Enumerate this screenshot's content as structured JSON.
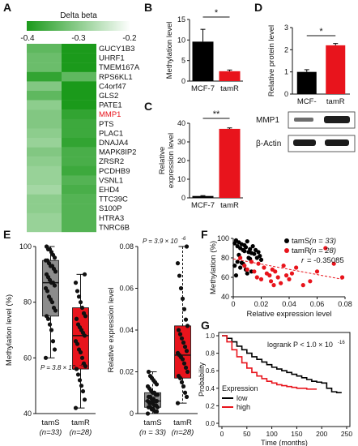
{
  "chart_data": [
    {
      "panel": "A",
      "type": "heatmap",
      "legend_title": "Delta beta",
      "legend_ticks": [
        "-0.4",
        "-0.3",
        "-0.2"
      ],
      "legend_range": [
        -0.4,
        -0.2
      ],
      "genes": [
        "GUCY1B3",
        "UHRF1",
        "TMEM167A",
        "RPS6KL1",
        "C4orf47",
        "GLS2",
        "PATE1",
        "MMP1",
        "PTS",
        "PLAC1",
        "DNAJA4",
        "MAPK8IP2",
        "ZRSR2",
        "PCDHB9",
        "VSNL1",
        "EHD4",
        "TTC39C",
        "S100P",
        "HTRA3",
        "TNRC6B"
      ],
      "highlight_gene": "MMP1",
      "highlight_color": "#e8141c",
      "columns": [
        [
          -0.34,
          -0.33,
          -0.33,
          -0.38,
          -0.31,
          -0.34,
          -0.3,
          -0.31,
          -0.31,
          -0.3,
          -0.29,
          -0.31,
          -0.3,
          -0.29,
          -0.29,
          -0.28,
          -0.3,
          -0.3,
          -0.29,
          -0.29
        ],
        [
          -0.4,
          -0.4,
          -0.4,
          -0.34,
          -0.4,
          -0.4,
          -0.4,
          -0.38,
          -0.37,
          -0.37,
          -0.38,
          -0.36,
          -0.36,
          -0.37,
          -0.35,
          -0.36,
          -0.35,
          -0.35,
          -0.35,
          -0.35
        ]
      ]
    },
    {
      "panel": "B",
      "type": "bar",
      "ylabel": "Methylation level",
      "categories": [
        "MCF-7",
        "tamR"
      ],
      "values": [
        9.6,
        2.4
      ],
      "errors": [
        3.0,
        0.3
      ],
      "colors": [
        "#000000",
        "#e8141c"
      ],
      "ylim": [
        0,
        15
      ],
      "yticks": [
        "0",
        "5",
        "10",
        "15"
      ],
      "significance": "*"
    },
    {
      "panel": "C",
      "type": "bar",
      "ylabel": "Relative expression level",
      "categories": [
        "MCF-7",
        "tamR"
      ],
      "values": [
        1,
        37
      ],
      "errors": [
        0.2,
        0.5
      ],
      "colors": [
        "#000000",
        "#e8141c"
      ],
      "ylim": [
        0,
        40
      ],
      "yticks": [
        "0",
        "10",
        "20",
        "30",
        "40"
      ],
      "significance": "**"
    },
    {
      "panel": "D",
      "type": "bar",
      "ylabel": "Relative protein level",
      "categories": [
        "MCF-",
        "tamR"
      ],
      "values": [
        1.0,
        2.2
      ],
      "errors": [
        0.1,
        0.08
      ],
      "colors": [
        "#000000",
        "#e8141c"
      ],
      "ylim": [
        0,
        3
      ],
      "yticks": [
        "0",
        "1",
        "2",
        "3"
      ],
      "significance": "*",
      "blot_labels": [
        "MMP1",
        "β-Actin"
      ]
    },
    {
      "panel": "E",
      "type": "box",
      "ylabel": "Methylation level (%)",
      "groups": [
        "tamS",
        "tamR"
      ],
      "group_n": [
        "(n=33)",
        "(n=28)"
      ],
      "box_colors": [
        "#8c8c8c",
        "#e8141c"
      ],
      "stats": [
        {
          "min": 60,
          "q1": 75,
          "median": 87,
          "q3": 95,
          "max": 100
        },
        {
          "min": 42,
          "q1": 56,
          "median": 68,
          "q3": 78,
          "max": 90
        }
      ],
      "points": [
        [
          60,
          63,
          66,
          70,
          72,
          74,
          75,
          77,
          78,
          80,
          81,
          82,
          84,
          85,
          86,
          87,
          87,
          88,
          89,
          90,
          91,
          92,
          93,
          93,
          94,
          95,
          95,
          96,
          97,
          98,
          99,
          99,
          100
        ],
        [
          42,
          45,
          48,
          50,
          52,
          54,
          56,
          57,
          58,
          60,
          62,
          63,
          65,
          66,
          68,
          69,
          70,
          71,
          72,
          74,
          75,
          76,
          78,
          80,
          82,
          84,
          87,
          90
        ]
      ],
      "ylim": [
        40,
        100
      ],
      "yticks": [
        "40",
        "60",
        "80",
        "100"
      ],
      "pvalue": "P = 3.8 × 10",
      "pvalue_exp": "-6"
    },
    {
      "panel": "E2",
      "type": "box",
      "ylabel": "Relative expression level",
      "groups": [
        "tamS",
        "tamR"
      ],
      "group_n": [
        "(n = 33)",
        "(n=28)"
      ],
      "box_colors": [
        "#8c8c8c",
        "#e8141c"
      ],
      "stats": [
        {
          "min": 0.0,
          "q1": 0.003,
          "median": 0.006,
          "q3": 0.01,
          "max": 0.02
        },
        {
          "min": 0.005,
          "q1": 0.017,
          "median": 0.028,
          "q3": 0.042,
          "max": 0.08
        }
      ],
      "points": [
        [
          0.0,
          0.001,
          0.001,
          0.002,
          0.002,
          0.003,
          0.003,
          0.003,
          0.004,
          0.004,
          0.005,
          0.005,
          0.005,
          0.006,
          0.006,
          0.006,
          0.007,
          0.007,
          0.008,
          0.008,
          0.009,
          0.009,
          0.01,
          0.01,
          0.011,
          0.012,
          0.013,
          0.014,
          0.015,
          0.016,
          0.017,
          0.018,
          0.02
        ],
        [
          0.005,
          0.008,
          0.01,
          0.013,
          0.015,
          0.017,
          0.018,
          0.02,
          0.022,
          0.024,
          0.026,
          0.027,
          0.028,
          0.029,
          0.03,
          0.032,
          0.034,
          0.036,
          0.038,
          0.04,
          0.042,
          0.045,
          0.05,
          0.055,
          0.06,
          0.066,
          0.072,
          0.08
        ]
      ],
      "ylim": [
        0,
        0.08
      ],
      "yticks": [
        "0",
        "0.02",
        "0.04",
        "0.06",
        "0.08"
      ],
      "pvalue": "P = 3.9 × 10",
      "pvalue_exp": "-6"
    },
    {
      "panel": "F",
      "type": "scatter",
      "xlabel": "Relative expression level",
      "ylabel": "Methylation (%)",
      "xlim": [
        0,
        0.08
      ],
      "ylim": [
        40,
        100
      ],
      "xticks": [
        "0",
        "0.02",
        "0.04",
        "0.06",
        "0.08"
      ],
      "yticks": [
        "40",
        "60",
        "80",
        "100"
      ],
      "series": [
        {
          "name": "tamS",
          "n_label": "(n = 33)",
          "color": "#000000",
          "x": [
            0.001,
            0.002,
            0.003,
            0.004,
            0.005,
            0.006,
            0.007,
            0.008,
            0.009,
            0.01,
            0.011,
            0.012,
            0.013,
            0.014,
            0.015,
            0.016,
            0.017,
            0.018,
            0.019,
            0.02,
            0.001,
            0.003,
            0.005,
            0.007,
            0.009,
            0.011,
            0.013,
            0.002,
            0.004,
            0.006,
            0.008,
            0.01,
            0.012
          ],
          "y": [
            95,
            98,
            92,
            96,
            90,
            94,
            88,
            93,
            91,
            97,
            86,
            89,
            85,
            92,
            84,
            88,
            80,
            86,
            82,
            78,
            72,
            76,
            70,
            74,
            68,
            80,
            66,
            62,
            83,
            75,
            87,
            64,
            79
          ]
        },
        {
          "name": "tamR",
          "n_label": "(n = 28)",
          "color": "#e8141c",
          "x": [
            0.005,
            0.008,
            0.01,
            0.013,
            0.015,
            0.017,
            0.018,
            0.02,
            0.022,
            0.024,
            0.026,
            0.027,
            0.028,
            0.029,
            0.03,
            0.032,
            0.034,
            0.036,
            0.038,
            0.04,
            0.042,
            0.045,
            0.05,
            0.055,
            0.06,
            0.066,
            0.072,
            0.078
          ],
          "y": [
            80,
            72,
            68,
            76,
            66,
            60,
            74,
            58,
            70,
            64,
            62,
            56,
            68,
            52,
            66,
            60,
            54,
            72,
            62,
            58,
            64,
            70,
            52,
            56,
            66,
            90,
            74,
            60
          ]
        }
      ],
      "trendline": {
        "x": [
          0,
          0.078
        ],
        "y": [
          79,
          58
        ]
      },
      "r_label": "r",
      "r_value": "= -0.35085"
    },
    {
      "panel": "G",
      "type": "line",
      "xlabel": "Time (months)",
      "ylabel": "Probability",
      "xlim": [
        0,
        250
      ],
      "ylim": [
        0,
        1.0
      ],
      "xticks": [
        "0",
        "50",
        "100",
        "150",
        "200",
        "250"
      ],
      "yticks": [
        "0.0",
        "0.2",
        "0.4",
        "0.6",
        "0.8",
        "1.0"
      ],
      "legend_title": "Expression",
      "annotation": "logrank P < 1.0 × 10",
      "annotation_exp": "-16",
      "series": [
        {
          "name": "low",
          "color": "#000000",
          "x": [
            0,
            10,
            20,
            30,
            40,
            50,
            60,
            70,
            80,
            90,
            100,
            110,
            120,
            130,
            140,
            150,
            160,
            170,
            180,
            190,
            200,
            210,
            220,
            230,
            240
          ],
          "y": [
            1.0,
            0.97,
            0.93,
            0.88,
            0.84,
            0.8,
            0.76,
            0.73,
            0.7,
            0.67,
            0.64,
            0.62,
            0.6,
            0.58,
            0.56,
            0.54,
            0.52,
            0.5,
            0.48,
            0.47,
            0.46,
            0.4,
            0.36,
            0.35,
            0.35
          ]
        },
        {
          "name": "high",
          "color": "#e8141c",
          "x": [
            0,
            10,
            20,
            30,
            40,
            50,
            60,
            70,
            80,
            90,
            100,
            110,
            120,
            130,
            140,
            150,
            160,
            170,
            180,
            190
          ],
          "y": [
            1.0,
            0.93,
            0.84,
            0.76,
            0.69,
            0.63,
            0.58,
            0.54,
            0.51,
            0.48,
            0.46,
            0.44,
            0.43,
            0.42,
            0.41,
            0.4,
            0.4,
            0.39,
            0.39,
            0.39
          ]
        }
      ]
    }
  ],
  "panel_labels": [
    "A",
    "B",
    "C",
    "D",
    "E",
    "F",
    "G"
  ]
}
